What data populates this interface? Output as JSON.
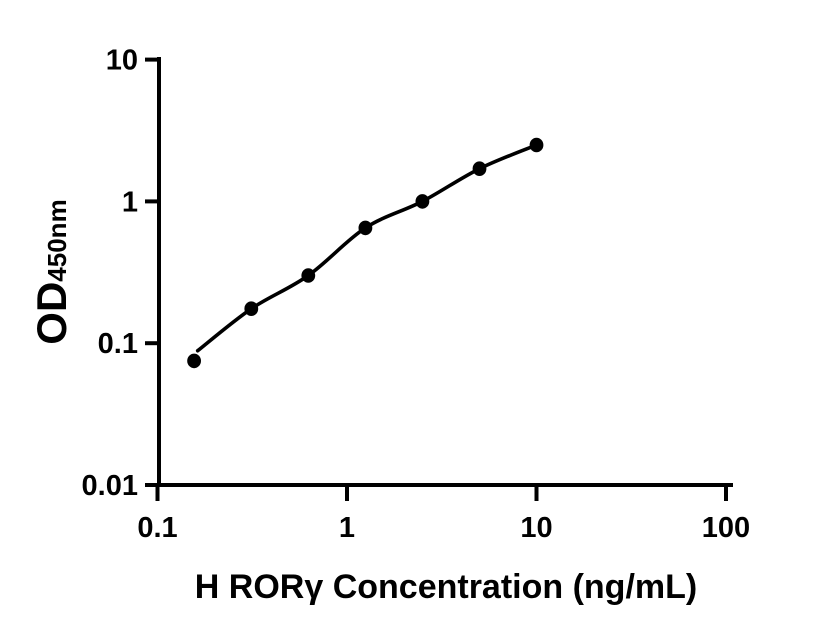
{
  "chart_data": {
    "type": "scatter",
    "title": "",
    "xlabel": "H RORγ Concentration (ng/mL)",
    "ylabel": "OD",
    "ylabel_subscript": "450nm",
    "x_scale": "log10",
    "y_scale": "log10",
    "xlim": [
      0.1,
      100
    ],
    "ylim": [
      0.01,
      10
    ],
    "x_ticks": [
      0.1,
      1,
      10,
      100
    ],
    "x_tick_labels": [
      "0.1",
      "1",
      "10",
      "100"
    ],
    "y_ticks": [
      10,
      1,
      0.1,
      0.01
    ],
    "y_tick_labels": [
      "10",
      "1",
      "0.1",
      "0.01"
    ],
    "grid": false,
    "legend": "none",
    "marker": "filled-circle",
    "marker_color": "#000000",
    "line_color": "#000000",
    "background_color": "#ffffff",
    "x": [
      0.156,
      0.3125,
      0.625,
      1.25,
      2.5,
      5,
      10
    ],
    "y": [
      0.075,
      0.175,
      0.3,
      0.65,
      1.0,
      1.7,
      2.5
    ],
    "fit_curve_x": [
      0.163,
      0.3125,
      0.625,
      1.25,
      2.5,
      5,
      10
    ],
    "fit_curve_y": [
      0.0885,
      0.175,
      0.3,
      0.65,
      1.0,
      1.7,
      2.5
    ]
  }
}
